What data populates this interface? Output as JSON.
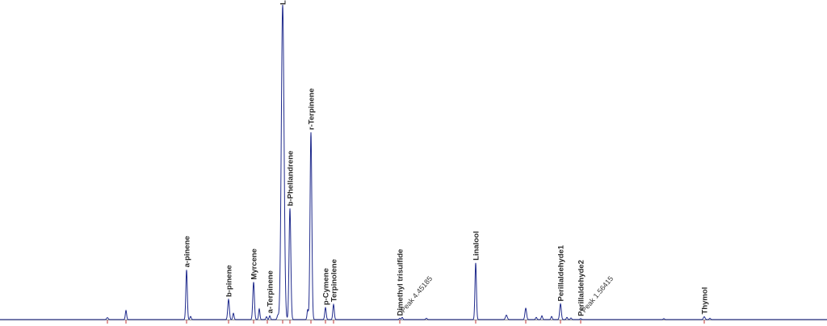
{
  "chart_data": {
    "type": "line",
    "title": "",
    "xlabel": "",
    "ylabel": "",
    "colors": {
      "trace": "#1f2a8c",
      "baseline": "#8a8a8a",
      "tick": "#c03030",
      "label": "#2a2a2a"
    },
    "xlim": [
      0,
      1024
    ],
    "ylim": [
      0,
      100
    ],
    "peaks": [
      {
        "x": 133,
        "y": 0.6,
        "w": 1.0
      },
      {
        "x": 156,
        "y": 2.9,
        "w": 0.8
      },
      {
        "x": 231,
        "y": 15.8,
        "w": 0.9,
        "name": "a-pinene"
      },
      {
        "x": 236,
        "y": 1.0,
        "w": 0.8
      },
      {
        "x": 283,
        "y": 6.4,
        "w": 1.0,
        "name": "b-pinene"
      },
      {
        "x": 289,
        "y": 2.0,
        "w": 0.8
      },
      {
        "x": 314,
        "y": 11.9,
        "w": 1.0,
        "name": "Myrcene"
      },
      {
        "x": 321,
        "y": 3.4,
        "w": 0.8
      },
      {
        "x": 330,
        "y": 0.9,
        "w": 0.8
      },
      {
        "x": 334,
        "y": 1.2,
        "w": 0.8,
        "name": "a-Terpinene"
      },
      {
        "x": 344,
        "y": 1.3,
        "w": 0.9
      },
      {
        "x": 350,
        "y": 100,
        "w": 1.7,
        "name": "Limonene"
      },
      {
        "x": 359,
        "y": 35.3,
        "w": 1.1,
        "name": "b-Phellandrene"
      },
      {
        "x": 381,
        "y": 3.1,
        "w": 0.8
      },
      {
        "x": 385,
        "y": 59.5,
        "w": 1.1,
        "name": "r-Terpinene"
      },
      {
        "x": 403,
        "y": 3.8,
        "w": 0.9,
        "name": "p-Cymene"
      },
      {
        "x": 413,
        "y": 4.8,
        "w": 0.9,
        "name": "Terpinolene"
      },
      {
        "x": 495,
        "y": 0.4,
        "w": 0.8,
        "name": "Dimethyl trisulfide"
      },
      {
        "x": 498,
        "y": 0.7,
        "w": 0.8
      },
      {
        "x": 528,
        "y": 0.4,
        "w": 0.9
      },
      {
        "x": 589,
        "y": 18.0,
        "w": 0.9,
        "name": "Linalool"
      },
      {
        "x": 627,
        "y": 1.4,
        "w": 1.1
      },
      {
        "x": 651,
        "y": 3.6,
        "w": 1.0
      },
      {
        "x": 664,
        "y": 0.7,
        "w": 0.8
      },
      {
        "x": 671,
        "y": 1.2,
        "w": 0.8
      },
      {
        "x": 683,
        "y": 1.0,
        "w": 0.8
      },
      {
        "x": 694,
        "y": 5.0,
        "w": 1.0,
        "name": "Perillaldehyde1"
      },
      {
        "x": 702,
        "y": 0.7,
        "w": 0.8
      },
      {
        "x": 707,
        "y": 0.5,
        "w": 0.8
      },
      {
        "x": 719,
        "y": 0.3,
        "w": 0.8,
        "name": "Perillaldehyde2"
      },
      {
        "x": 822,
        "y": 0.3,
        "w": 0.8
      },
      {
        "x": 872,
        "y": 0.9,
        "w": 1.0,
        "name": "Thymol"
      },
      {
        "x": 879,
        "y": 0.4,
        "w": 0.8
      }
    ],
    "unknown_labels": [
      {
        "x": 500,
        "text": "Peak 4.45185"
      },
      {
        "x": 724,
        "text": "Peak 1.56415"
      }
    ],
    "ticks": [
      133,
      156,
      231,
      283,
      314,
      331,
      350,
      359,
      385,
      403,
      413,
      495,
      589,
      651,
      694,
      719,
      872
    ]
  }
}
